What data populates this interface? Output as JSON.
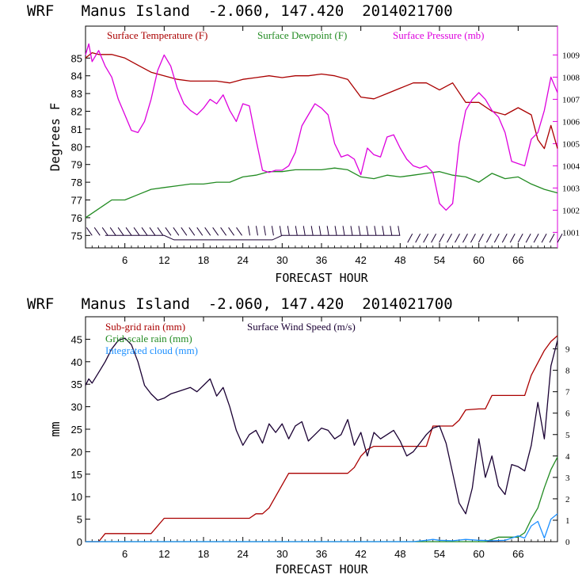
{
  "chart_data": [
    {
      "type": "line",
      "title": "WRF   Manus Island  -2.060, 147.420  2014021700",
      "xlabel": "FORECAST HOUR",
      "ylabel": "Degrees F",
      "xlim": [
        0,
        72
      ],
      "x_ticks": [
        "6",
        "12",
        "18",
        "24",
        "30",
        "36",
        "42",
        "48",
        "54",
        "60",
        "66"
      ],
      "ylim": [
        74.3,
        86.8
      ],
      "y_ticks": [
        "75",
        "76",
        "77",
        "78",
        "79",
        "80",
        "81",
        "82",
        "83",
        "84",
        "85"
      ],
      "y2lim": [
        1000.3,
        1010.3
      ],
      "y2_ticks": [
        "1001",
        "1002",
        "1003",
        "1004",
        "1005",
        "1006",
        "1007",
        "1008",
        "1009"
      ],
      "colors": {
        "temperature": "#aa0000",
        "dewpoint": "#228b22",
        "pressure": "#dd00dd",
        "wind": "#1a0033"
      },
      "series": [
        {
          "name": "Surface Temperature (F)",
          "axis": "left",
          "x": [
            0,
            1,
            2,
            4,
            6,
            8,
            10,
            12,
            14,
            16,
            18,
            20,
            22,
            24,
            26,
            28,
            30,
            32,
            34,
            36,
            38,
            40,
            42,
            44,
            46,
            48,
            50,
            52,
            54,
            56,
            58,
            60,
            62,
            64,
            66,
            68,
            69,
            70,
            71,
            72
          ],
          "y": [
            85.0,
            85.3,
            85.2,
            85.2,
            85.0,
            84.6,
            84.2,
            84.0,
            83.8,
            83.7,
            83.7,
            83.7,
            83.6,
            83.8,
            83.9,
            84.0,
            83.9,
            84.0,
            84.0,
            84.1,
            84.0,
            83.8,
            82.8,
            82.7,
            83.0,
            83.3,
            83.6,
            83.6,
            83.2,
            83.6,
            82.5,
            82.5,
            82.0,
            81.8,
            82.2,
            81.8,
            80.4,
            79.9,
            81.2,
            79.9
          ]
        },
        {
          "name": "Surface Dewpoint (F)",
          "axis": "left",
          "x": [
            0,
            2,
            4,
            6,
            8,
            10,
            12,
            14,
            16,
            18,
            20,
            22,
            24,
            26,
            28,
            30,
            32,
            34,
            36,
            38,
            40,
            42,
            44,
            46,
            48,
            50,
            52,
            54,
            56,
            58,
            60,
            62,
            64,
            66,
            68,
            70,
            72
          ],
          "y": [
            76.0,
            76.5,
            77.0,
            77.0,
            77.3,
            77.6,
            77.7,
            77.8,
            77.9,
            77.9,
            78.0,
            78.0,
            78.3,
            78.4,
            78.6,
            78.6,
            78.7,
            78.7,
            78.7,
            78.8,
            78.7,
            78.3,
            78.2,
            78.4,
            78.3,
            78.4,
            78.5,
            78.6,
            78.4,
            78.3,
            78.0,
            78.5,
            78.2,
            78.3,
            77.9,
            77.6,
            77.4
          ]
        },
        {
          "name": "Surface Pressure (mb)",
          "axis": "right",
          "x": [
            0,
            0.5,
            1,
            2,
            3,
            4,
            5,
            6,
            7,
            8,
            9,
            10,
            11,
            12,
            13,
            14,
            15,
            16,
            17,
            18,
            19,
            20,
            21,
            22,
            23,
            24,
            25,
            26,
            27,
            28,
            29,
            30,
            31,
            32,
            33,
            34,
            35,
            36,
            37,
            38,
            39,
            40,
            41,
            42,
            43,
            44,
            45,
            46,
            47,
            48,
            49,
            50,
            51,
            52,
            53,
            54,
            55,
            56,
            57,
            58,
            59,
            60,
            61,
            62,
            63,
            64,
            65,
            66,
            67,
            68,
            69,
            70,
            71,
            72
          ],
          "y": [
            1009.0,
            1009.5,
            1008.7,
            1009.2,
            1008.5,
            1008.0,
            1007.0,
            1006.3,
            1005.6,
            1005.5,
            1006.0,
            1007.0,
            1008.3,
            1009.0,
            1008.5,
            1007.5,
            1006.8,
            1006.5,
            1006.3,
            1006.6,
            1007.0,
            1006.8,
            1007.2,
            1006.5,
            1006.0,
            1006.8,
            1006.7,
            1005.2,
            1003.8,
            1003.7,
            1003.8,
            1003.8,
            1004.0,
            1004.6,
            1005.8,
            1006.3,
            1006.8,
            1006.6,
            1006.3,
            1005.0,
            1004.4,
            1004.5,
            1004.3,
            1003.6,
            1004.8,
            1004.5,
            1004.4,
            1005.3,
            1005.4,
            1004.8,
            1004.3,
            1004.0,
            1003.9,
            1004.0,
            1003.7,
            1002.3,
            1002.0,
            1002.3,
            1005.0,
            1006.5,
            1007.0,
            1007.3,
            1007.0,
            1006.5,
            1006.2,
            1005.5,
            1004.2,
            1004.1,
            1004.0,
            1005.2,
            1005.5,
            1006.5,
            1008.0,
            1007.3
          ]
        }
      ],
      "wind_barbs": {
        "x_start": 1,
        "x_end": 72,
        "count": 60,
        "note": "Surface wind barbs drawn along the bottom of the plot"
      }
    },
    {
      "type": "line",
      "title": "WRF   Manus Island  -2.060, 147.420  2014021700",
      "xlabel": "FORECAST HOUR",
      "ylabel": "mm",
      "xlim": [
        0,
        72
      ],
      "x_ticks": [
        "6",
        "12",
        "18",
        "24",
        "30",
        "36",
        "42",
        "48",
        "54",
        "60",
        "66"
      ],
      "ylim": [
        0,
        50
      ],
      "y_ticks": [
        "0",
        "5",
        "10",
        "15",
        "20",
        "25",
        "30",
        "35",
        "40",
        "45"
      ],
      "y2lim": [
        0,
        10.5
      ],
      "y2_ticks": [
        "0",
        "1",
        "2",
        "3",
        "4",
        "5",
        "6",
        "7",
        "8",
        "9"
      ],
      "series": [
        {
          "name": "Sub-grid rain (mm)",
          "axis": "left",
          "color": "#aa0000",
          "x": [
            0,
            2,
            3,
            10,
            12,
            25,
            26,
            27,
            28,
            31,
            32,
            40,
            41,
            42,
            43,
            44,
            45,
            48,
            52,
            53,
            56,
            57,
            58,
            60,
            61,
            62,
            67,
            68,
            70,
            71,
            72
          ],
          "y": [
            0,
            0,
            1.8,
            1.8,
            5.2,
            5.2,
            6.2,
            6.2,
            7.5,
            15.2,
            15.2,
            15.2,
            16.5,
            19.0,
            20.5,
            21.2,
            21.2,
            21.2,
            21.2,
            25.7,
            25.7,
            27.0,
            29.3,
            29.5,
            29.5,
            32.5,
            32.5,
            37.0,
            42.5,
            44.5,
            45.8
          ]
        },
        {
          "name": "Grid-scale rain (mm)",
          "axis": "left",
          "color": "#228b22",
          "x": [
            0,
            61,
            62,
            63,
            66,
            67,
            68,
            69,
            70,
            71,
            72
          ],
          "y": [
            0,
            0,
            0.5,
            1.0,
            1.0,
            2.0,
            5.0,
            7.5,
            12.0,
            16.0,
            18.8
          ]
        },
        {
          "name": "Integrated cloud (mm)",
          "axis": "left",
          "color": "#1e90ff",
          "x": [
            0,
            50,
            52,
            53,
            54,
            56,
            58,
            60,
            62,
            64,
            65,
            66,
            67,
            68,
            69,
            70,
            71,
            72
          ],
          "y": [
            0,
            0,
            0.3,
            0.5,
            0.3,
            0.2,
            0.5,
            0.3,
            0.2,
            0.3,
            0.8,
            1.3,
            0.8,
            3.5,
            4.5,
            0.8,
            5.0,
            6.2
          ]
        },
        {
          "name": "Surface Wind Speed (m/s)",
          "axis": "right",
          "color": "#1a0033",
          "x": [
            0,
            0.5,
            1,
            2,
            3,
            4,
            5,
            6,
            7,
            8,
            9,
            10,
            11,
            12,
            13,
            14,
            15,
            16,
            17,
            18,
            19,
            20,
            21,
            22,
            23,
            24,
            25,
            26,
            27,
            28,
            29,
            30,
            31,
            32,
            33,
            34,
            35,
            36,
            37,
            38,
            39,
            40,
            41,
            42,
            43,
            44,
            45,
            46,
            47,
            48,
            49,
            50,
            51,
            52,
            53,
            54,
            55,
            56,
            57,
            58,
            59,
            60,
            61,
            62,
            63,
            64,
            65,
            66,
            67,
            68,
            69,
            70,
            71,
            72
          ],
          "y": [
            7.3,
            7.6,
            7.4,
            7.9,
            8.4,
            9.0,
            9.4,
            9.5,
            9.2,
            8.4,
            7.3,
            6.9,
            6.6,
            6.7,
            6.9,
            7.0,
            7.1,
            7.2,
            7.0,
            7.3,
            7.6,
            6.8,
            7.2,
            6.3,
            5.2,
            4.5,
            5.0,
            5.2,
            4.6,
            5.5,
            5.1,
            5.5,
            4.8,
            5.4,
            5.6,
            4.7,
            5.0,
            5.3,
            5.2,
            4.8,
            5.0,
            5.7,
            4.5,
            5.1,
            4.0,
            5.1,
            4.8,
            5.0,
            5.2,
            4.7,
            4.0,
            4.2,
            4.6,
            5.0,
            5.3,
            5.4,
            4.6,
            3.2,
            1.8,
            1.3,
            2.5,
            4.8,
            3.0,
            4.0,
            2.6,
            2.2,
            3.6,
            3.5,
            3.3,
            4.5,
            6.5,
            4.8,
            8.2,
            9.4
          ]
        }
      ]
    }
  ]
}
